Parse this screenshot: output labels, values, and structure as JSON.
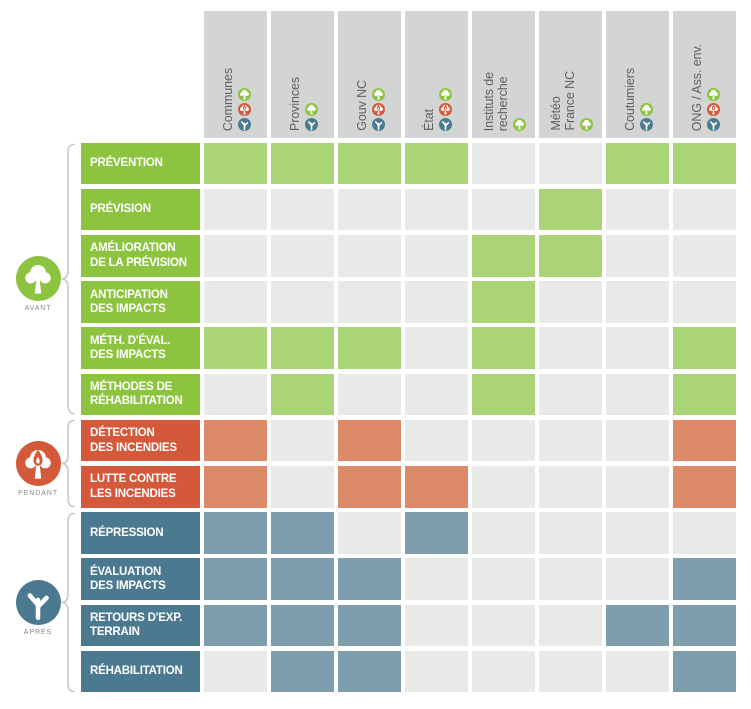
{
  "palette": {
    "green": "#8cc440",
    "green_light": "#abd478",
    "red": "#d4593b",
    "red_light": "#dd8a6a",
    "blue": "#4b7a90",
    "blue_light": "#7f9ead",
    "cell_empty": "#e8eae8",
    "header_bg": "#d3d5d4",
    "header_text": "#5e5f62",
    "brace": "#c7c9c8",
    "phase_label": "#87898c"
  },
  "phases": [
    {
      "id": "avant",
      "label": "AVANT",
      "icon": "tree-icon",
      "color": "green"
    },
    {
      "id": "pendant",
      "label": "PENDANT",
      "icon": "burning-tree-icon",
      "color": "red"
    },
    {
      "id": "apres",
      "label": "APRÈS",
      "icon": "bare-tree-icon",
      "color": "blue"
    }
  ],
  "columns": [
    {
      "id": "communes",
      "label": "Communes",
      "phase_icons": [
        "avant",
        "pendant",
        "apres"
      ]
    },
    {
      "id": "provinces",
      "label": "Provinces",
      "phase_icons": [
        "avant",
        "apres"
      ]
    },
    {
      "id": "gouv-nc",
      "label": "Gouv NC",
      "phase_icons": [
        "avant",
        "pendant",
        "apres"
      ]
    },
    {
      "id": "etat",
      "label": "État",
      "phase_icons": [
        "avant",
        "pendant",
        "apres"
      ]
    },
    {
      "id": "instituts-recherche",
      "label": "Instituts de\nrecherche",
      "phase_icons": [
        "avant"
      ]
    },
    {
      "id": "meteo-france-nc",
      "label": "Météo\nFrance NC",
      "phase_icons": [
        "avant"
      ]
    },
    {
      "id": "coutumiers",
      "label": "Coutumiers",
      "phase_icons": [
        "avant",
        "apres"
      ]
    },
    {
      "id": "ong-ass-env",
      "label": "ONG / Ass. env.",
      "phase_icons": [
        "avant",
        "pendant",
        "apres"
      ]
    }
  ],
  "rows": [
    {
      "id": "prevention",
      "phase": "avant",
      "label": "PRÉVENTION",
      "cells": [
        1,
        1,
        1,
        1,
        0,
        0,
        1,
        1
      ]
    },
    {
      "id": "prevision",
      "phase": "avant",
      "label": "PRÉVISION",
      "cells": [
        0,
        0,
        0,
        0,
        0,
        1,
        0,
        0
      ]
    },
    {
      "id": "amelioration-prevision",
      "phase": "avant",
      "label": "AMÉLIORATION\nDE LA PRÉVISION",
      "cells": [
        0,
        0,
        0,
        0,
        1,
        1,
        0,
        0
      ]
    },
    {
      "id": "anticipation-impacts",
      "phase": "avant",
      "label": "ANTICIPATION\nDES IMPACTS",
      "cells": [
        0,
        0,
        0,
        0,
        1,
        0,
        0,
        0
      ]
    },
    {
      "id": "meth-eval-impacts",
      "phase": "avant",
      "label": "MÉTH. D'ÉVAL.\nDES IMPACTS",
      "cells": [
        1,
        1,
        1,
        0,
        1,
        0,
        0,
        1
      ]
    },
    {
      "id": "methodes-rehabilitation",
      "phase": "avant",
      "label": "MÉTHODES DE\nRÉHABILITATION",
      "cells": [
        0,
        1,
        0,
        0,
        1,
        0,
        0,
        1
      ]
    },
    {
      "id": "detection-incendies",
      "phase": "pendant",
      "label": "DÉTECTION\nDES INCENDIES",
      "cells": [
        1,
        0,
        1,
        0,
        0,
        0,
        0,
        1
      ]
    },
    {
      "id": "lutte-incendies",
      "phase": "pendant",
      "label": "LUTTE CONTRE\nLES INCENDIES",
      "cells": [
        1,
        0,
        1,
        1,
        0,
        0,
        0,
        1
      ]
    },
    {
      "id": "repression",
      "phase": "apres",
      "label": "RÉPRESSION",
      "cells": [
        1,
        1,
        0,
        1,
        0,
        0,
        0,
        0
      ]
    },
    {
      "id": "evaluation-impacts",
      "phase": "apres",
      "label": "ÉVALUATION\nDES IMPACTS",
      "cells": [
        1,
        1,
        1,
        0,
        0,
        0,
        0,
        1
      ]
    },
    {
      "id": "retours-exp-terrain",
      "phase": "apres",
      "label": "RETOURS D'EXP.\nTERRAIN",
      "cells": [
        1,
        1,
        1,
        0,
        0,
        0,
        1,
        1
      ]
    },
    {
      "id": "rehabilitation",
      "phase": "apres",
      "label": "RÉHABILITATION",
      "cells": [
        0,
        1,
        1,
        0,
        0,
        0,
        0,
        1
      ]
    }
  ]
}
